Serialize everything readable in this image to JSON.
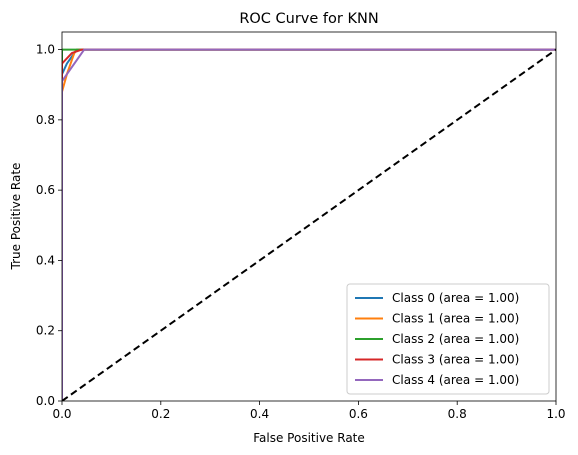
{
  "chart_data": {
    "type": "line",
    "title": "ROC Curve for KNN",
    "xlabel": "False Positive Rate",
    "ylabel": "True Positive Rate",
    "xlim": [
      0.0,
      1.0
    ],
    "ylim": [
      0.0,
      1.05
    ],
    "xticks": [
      0.0,
      0.2,
      0.4,
      0.6,
      0.8,
      1.0
    ],
    "yticks": [
      0.0,
      0.2,
      0.4,
      0.6,
      0.8,
      1.0
    ],
    "xtick_labels": [
      "0.0",
      "0.2",
      "0.4",
      "0.6",
      "0.8",
      "1.0"
    ],
    "ytick_labels": [
      "0.0",
      "0.2",
      "0.4",
      "0.6",
      "0.8",
      "1.0"
    ],
    "grid": false,
    "legend_position": "lower-right",
    "series": [
      {
        "name": "Class 0 (area = 1.00)",
        "color": "#1f77b4",
        "x": [
          0,
          0,
          0.01,
          0.03,
          1.0
        ],
        "y": [
          0,
          0.93,
          0.96,
          1.0,
          1.0
        ]
      },
      {
        "name": "Class 1 (area = 1.00)",
        "color": "#ff7f0e",
        "x": [
          0,
          0,
          0.01,
          0.025,
          0.03,
          1.0
        ],
        "y": [
          0,
          0.88,
          0.93,
          0.99,
          1.0,
          1.0
        ]
      },
      {
        "name": "Class 2 (area = 1.00)",
        "color": "#2ca02c",
        "x": [
          0,
          0,
          0.005,
          1.0
        ],
        "y": [
          0,
          1.0,
          1.0,
          1.0
        ]
      },
      {
        "name": "Class 3 (area = 1.00)",
        "color": "#d62728",
        "x": [
          0,
          0,
          0.02,
          0.04,
          1.0
        ],
        "y": [
          0,
          0.96,
          0.99,
          1.0,
          1.0
        ]
      },
      {
        "name": "Class 4 (area = 1.00)",
        "color": "#9467bd",
        "x": [
          0,
          0,
          0.02,
          0.045,
          1.0
        ],
        "y": [
          0,
          0.91,
          0.95,
          1.0,
          1.0
        ]
      }
    ],
    "reference_line": {
      "x": [
        0,
        1
      ],
      "y": [
        0,
        1
      ],
      "color": "#000000",
      "style": "dashed"
    }
  }
}
